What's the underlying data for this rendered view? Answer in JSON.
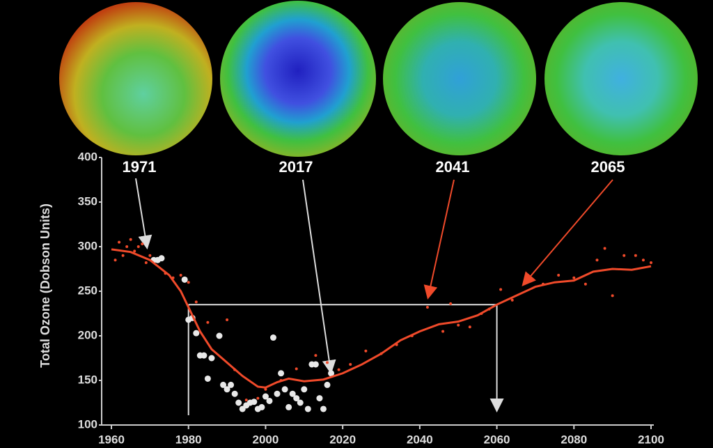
{
  "chart_data": {
    "type": "line",
    "y_label": "Total Ozone (Dobson Units)",
    "annotations": [
      "1971",
      "2017",
      "2041",
      "2065"
    ],
    "xlim": [
      1960,
      2100
    ],
    "xticks": [
      1960,
      1980,
      2000,
      2020,
      2040,
      2060,
      2080,
      2100
    ],
    "ylim": [
      100,
      400
    ],
    "yticks": [
      100,
      150,
      200,
      250,
      300,
      350,
      400
    ],
    "reference": {
      "y": 235,
      "x": [
        1980,
        2060
      ],
      "color": "#dddddd"
    },
    "series": [
      {
        "style": "points",
        "color": "#f04a2a",
        "x": [
          1961,
          1962,
          1963,
          1964,
          1965,
          1966,
          1967,
          1968,
          1969,
          1970,
          1974,
          1976,
          1978,
          1980,
          1982,
          1985,
          1988,
          1990,
          1992,
          1995,
          1998,
          2000,
          2004,
          2008,
          2013,
          2016,
          2019,
          2022,
          2026,
          2030,
          2034,
          2038,
          2042,
          2046,
          2048,
          2050,
          2053,
          2056,
          2058,
          2061,
          2064,
          2068,
          2072,
          2076,
          2080,
          2083,
          2086,
          2088,
          2090,
          2093,
          2096,
          2098,
          2100
        ],
        "values": [
          285,
          305,
          290,
          300,
          308,
          295,
          300,
          303,
          282,
          290,
          270,
          265,
          268,
          260,
          238,
          215,
          200,
          218,
          162,
          128,
          130,
          140,
          150,
          163,
          178,
          170,
          162,
          168,
          183,
          180,
          190,
          200,
          232,
          205,
          236,
          212,
          210,
          225,
          230,
          252,
          240,
          265,
          258,
          268,
          265,
          258,
          285,
          298,
          245,
          290,
          290,
          285,
          282
        ]
      },
      {
        "style": "points",
        "color": "#e8e8e8",
        "x": [
          1971,
          1972,
          1973,
          1979,
          1980,
          1981,
          1982,
          1983,
          1984,
          1985,
          1986,
          1988,
          1989,
          1990,
          1991,
          1992,
          1993,
          1994,
          1995,
          1996,
          1997,
          1998,
          1999,
          2000,
          2001,
          2002,
          2003,
          2004,
          2005,
          2006,
          2007,
          2008,
          2009,
          2010,
          2011,
          2012,
          2013,
          2014,
          2015,
          2016,
          2017
        ],
        "values": [
          285,
          285,
          287,
          263,
          218,
          220,
          203,
          178,
          178,
          152,
          175,
          200,
          145,
          140,
          145,
          135,
          125,
          118,
          122,
          125,
          126,
          118,
          120,
          132,
          127,
          198,
          135,
          158,
          140,
          120,
          135,
          130,
          125,
          140,
          118,
          168,
          168,
          130,
          118,
          145,
          158
        ]
      },
      {
        "style": "line",
        "color": "#f04a2a",
        "x": [
          1960,
          1965,
          1970,
          1975,
          1978,
          1980,
          1983,
          1986,
          1990,
          1994,
          1998,
          2000,
          2003,
          2006,
          2010,
          2015,
          2020,
          2025,
          2030,
          2035,
          2040,
          2045,
          2050,
          2055,
          2060,
          2065,
          2070,
          2075,
          2080,
          2085,
          2090,
          2095,
          2100
        ],
        "values": [
          297,
          294,
          285,
          268,
          250,
          232,
          205,
          185,
          170,
          155,
          143,
          142,
          148,
          152,
          149,
          151,
          158,
          168,
          180,
          195,
          205,
          213,
          216,
          223,
          235,
          245,
          255,
          260,
          262,
          272,
          275,
          274,
          278
        ]
      }
    ]
  }
}
